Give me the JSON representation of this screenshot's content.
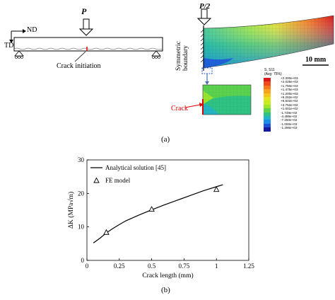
{
  "panel_a": {
    "caption": "(a)",
    "left": {
      "load_label": "P",
      "axis_nd": "ND",
      "axis_td": "TD",
      "crack_initiation": "Crack initiation"
    },
    "right": {
      "load_label": "P/2",
      "symmetric_boundary": "Symmetric boundary",
      "scale_bar": "10 mm",
      "crack_label": "Crack",
      "colorbar": {
        "title": "S, S11",
        "subtitle": "(Avg: 75%)",
        "values": [
          "+2.300e+03",
          "+2.025e+03",
          "+1.750e+03",
          "+1.475e+03",
          "+1.200e+03",
          "+9.252e+02",
          "+6.502e+02",
          "+3.752e+02",
          "+1.001e+02",
          "-1.749e+02",
          "-4.499e+02",
          "-7.250e+02",
          "-1.000e+03",
          "-1.296e+03"
        ],
        "colors": [
          "#d7191c",
          "#f04a1a",
          "#f7781c",
          "#f9a21d",
          "#f5c41f",
          "#e6e21f",
          "#c7ec1e",
          "#9ee52a",
          "#5fd44a",
          "#2fc383",
          "#22b5c9",
          "#1a8ee6",
          "#1d4fd9",
          "#16199e"
        ]
      }
    }
  },
  "panel_b": {
    "caption": "(b)"
  },
  "chart_data": {
    "type": "line",
    "xlabel": "Crack length (mm)",
    "ylabel": "ΔK (MPa√m)",
    "xlim": [
      0,
      1.25
    ],
    "ylim": [
      0,
      30
    ],
    "xticks": [
      "0",
      "0.25",
      "0.5",
      "0.75",
      "1",
      "1.25"
    ],
    "yticks": [
      "0",
      "10",
      "20",
      "30"
    ],
    "legend_position": "top-left",
    "series": [
      {
        "name": "Analytical solution [45]",
        "style": "line",
        "x": [
          0.05,
          0.1,
          0.15,
          0.2,
          0.25,
          0.3,
          0.4,
          0.5,
          0.6,
          0.7,
          0.8,
          0.9,
          1.0,
          1.05
        ],
        "values": [
          5.2,
          6.6,
          8.2,
          9.5,
          10.7,
          11.8,
          13.5,
          15.1,
          16.6,
          18.0,
          19.4,
          20.8,
          22.0,
          22.6
        ]
      },
      {
        "name": "FE model",
        "style": "triangle-marker",
        "x": [
          0.15,
          0.5,
          1.0
        ],
        "values": [
          8.4,
          15.3,
          21.2
        ]
      }
    ]
  }
}
